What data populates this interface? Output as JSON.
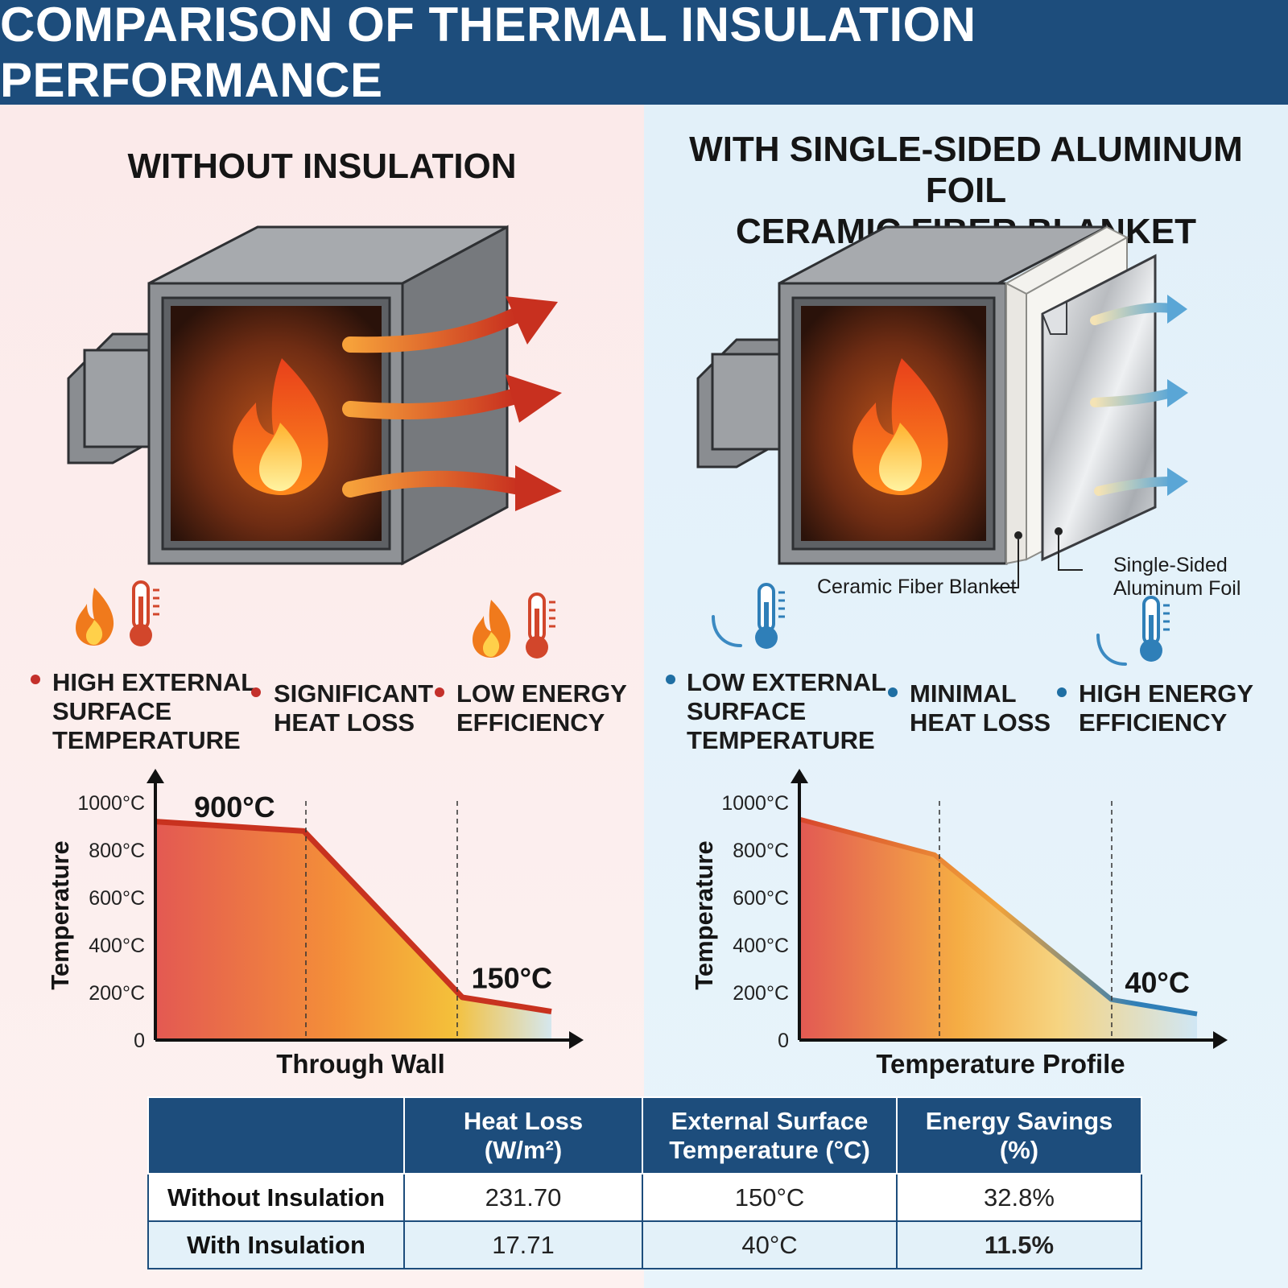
{
  "title": "COMPARISON OF THERMAL INSULATION PERFORMANCE",
  "left": {
    "heading": "WITHOUT INSULATION",
    "bullets": [
      {
        "lines": [
          "HIGH EXTERNAL",
          "SURFACE",
          "TEMPERATURE"
        ]
      },
      {
        "lines": [
          "SIGNIFICANT",
          "HEAT LOSS"
        ]
      },
      {
        "lines": [
          "LOW ENERGY",
          "EFFICIENCY"
        ]
      }
    ]
  },
  "right": {
    "heading_lines": [
      "WITH SINGLE-SIDED ALUMINUM FOIL",
      "CERAMIC FIBER BLANKET"
    ],
    "callouts": {
      "blanket": "Ceramic Fiber Blanket",
      "foil_lines": [
        "Single-Sided",
        "Aluminum Foil"
      ]
    },
    "bullets": [
      {
        "lines": [
          "LOW EXTERNAL",
          "SURFACE",
          "TEMPERATURE"
        ]
      },
      {
        "lines": [
          "MINIMAL",
          "HEAT LOSS"
        ]
      },
      {
        "lines": [
          "HIGH ENERGY",
          "EFFICIENCY"
        ]
      }
    ]
  },
  "colors": {
    "header": "#1d4d7c",
    "hot": "#c4302b",
    "cool": "#1f6fa3"
  },
  "icons": [
    "fire-icon",
    "thermometer-hot-icon",
    "thermometer-cold-icon",
    "cold-wave-icon",
    "heat-arrow-icon"
  ],
  "chart_data": [
    {
      "type": "area",
      "ylabel": "Temperature",
      "xlabel": "Through Wall",
      "yticks": [
        "0",
        "200°C",
        "400°C",
        "600°C",
        "800°C",
        "1000°C"
      ],
      "ylim": [
        0,
        1000
      ],
      "x": [
        0,
        0.375,
        0.775,
        1.0
      ],
      "y": [
        920,
        880,
        180,
        120
      ],
      "annotations": [
        {
          "text": "900°C",
          "x": 0.2,
          "y": 980
        },
        {
          "text": "150°C",
          "x": 0.9,
          "y": 260
        }
      ]
    },
    {
      "type": "area",
      "ylabel": "Temperature",
      "xlabel": "Temperature Profile",
      "yticks": [
        "0",
        "200°C",
        "400°C",
        "600°C",
        "800°C",
        "1000°C"
      ],
      "ylim": [
        0,
        1000
      ],
      "x": [
        0,
        0.34,
        0.785,
        1.0
      ],
      "y": [
        930,
        780,
        170,
        110
      ],
      "annotations": [
        {
          "text": "40°C",
          "x": 0.9,
          "y": 240
        }
      ]
    }
  ],
  "table": {
    "headers": [
      {
        "lines": [
          "Heat Loss",
          "(W/m²)"
        ]
      },
      {
        "lines": [
          "External Surface",
          "Temperature (°C)"
        ]
      },
      {
        "lines": [
          "Energy Savings",
          "(%)"
        ]
      }
    ],
    "rows": [
      {
        "label": "Without Insulation",
        "heat_loss": "231.70",
        "surface_temp": "150°C",
        "savings": "32.8%"
      },
      {
        "label": "With Insulation",
        "heat_loss": "17.71",
        "surface_temp": "40°C",
        "savings": "11.5%"
      }
    ]
  }
}
